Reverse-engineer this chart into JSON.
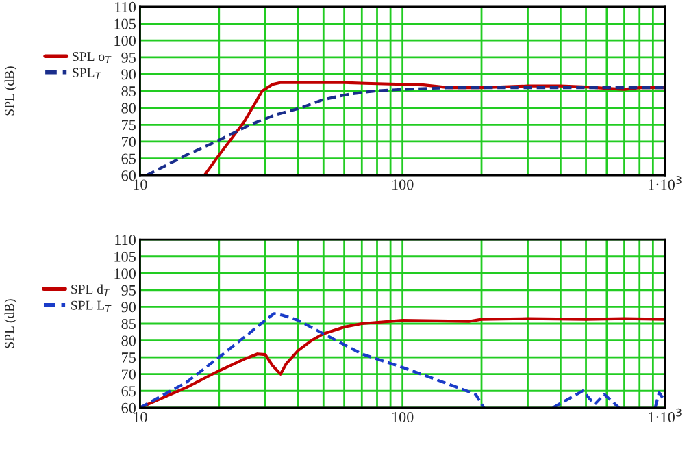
{
  "chart_data": [
    {
      "type": "line",
      "ylabel": "SPL (dB)",
      "xlim": [
        10,
        1000
      ],
      "ylim": [
        60,
        110
      ],
      "log": "x",
      "grid": true,
      "legend": "left",
      "xticks": [
        10,
        {
          "value": 20,
          "label": null
        },
        {
          "value": 30,
          "label": null
        },
        {
          "value": 40,
          "label": null
        },
        {
          "value": 50,
          "label": null
        },
        {
          "value": 60,
          "label": null
        },
        {
          "value": 70,
          "label": null
        },
        {
          "value": 80,
          "label": null
        },
        {
          "value": 90,
          "label": null
        },
        100,
        {
          "value": 200,
          "label": null
        },
        {
          "value": 300,
          "label": null
        },
        {
          "value": 400,
          "label": null
        },
        {
          "value": 500,
          "label": null
        },
        {
          "value": 600,
          "label": null
        },
        {
          "value": 700,
          "label": null
        },
        {
          "value": 800,
          "label": null
        },
        {
          "value": 900,
          "label": null
        },
        {
          "value": 1000,
          "label": "1·10$^{3}$"
        }
      ],
      "yticks": [
        60,
        65,
        70,
        75,
        80,
        85,
        90,
        95,
        100,
        105,
        110
      ],
      "series": [
        {
          "name": "SPL o$_{T}$",
          "color": "#c00000",
          "line_style": "solid",
          "x": [
            17.6,
            20,
            25,
            29.2,
            32,
            34.2,
            40,
            60,
            72,
            100,
            120,
            150,
            200,
            300,
            400,
            500,
            600,
            700,
            800,
            1000
          ],
          "values": [
            60,
            66,
            76,
            85,
            87,
            87.5,
            87.5,
            87.5,
            87.3,
            87,
            86.8,
            86,
            86,
            86.5,
            86.5,
            86.2,
            85.8,
            85.5,
            86,
            86
          ]
        },
        {
          "name": "SPL$_{T}$",
          "color": "#1a2e8c",
          "line_style": "dashed",
          "x": [
            10.6,
            15,
            19.5,
            26.3,
            33,
            41,
            50,
            62,
            78,
            100,
            150,
            200,
            300,
            500,
            700,
            1000
          ],
          "values": [
            60,
            66,
            70,
            75,
            78,
            80,
            82.5,
            84,
            85,
            85.5,
            86,
            86,
            86,
            86,
            86,
            86
          ]
        }
      ]
    },
    {
      "type": "line",
      "ylabel": "SPL (dB)",
      "xlim": [
        10,
        1000
      ],
      "ylim": [
        60,
        110
      ],
      "log": "x",
      "grid": true,
      "legend": "left",
      "xticks": [
        10,
        {
          "value": 20,
          "label": null
        },
        {
          "value": 30,
          "label": null
        },
        {
          "value": 40,
          "label": null
        },
        {
          "value": 50,
          "label": null
        },
        {
          "value": 60,
          "label": null
        },
        {
          "value": 70,
          "label": null
        },
        {
          "value": 80,
          "label": null
        },
        {
          "value": 90,
          "label": null
        },
        100,
        {
          "value": 200,
          "label": null
        },
        {
          "value": 300,
          "label": null
        },
        {
          "value": 400,
          "label": null
        },
        {
          "value": 500,
          "label": null
        },
        {
          "value": 600,
          "label": null
        },
        {
          "value": 700,
          "label": null
        },
        {
          "value": 800,
          "label": null
        },
        {
          "value": 900,
          "label": null
        },
        {
          "value": 1000,
          "label": "1·10$^{3}$"
        }
      ],
      "yticks": [
        60,
        65,
        70,
        75,
        80,
        85,
        90,
        95,
        100,
        105,
        110
      ],
      "series": [
        {
          "name": "SPL d$_{T}$",
          "color": "#c00000",
          "line_style": "solid",
          "x": [
            10,
            15,
            20,
            25,
            28,
            30,
            32,
            34.3,
            36,
            40,
            45,
            50,
            60,
            70,
            100,
            150,
            180,
            200,
            300,
            500,
            700,
            1000
          ],
          "values": [
            60,
            66,
            71,
            74.5,
            76,
            75.8,
            72.5,
            70,
            73,
            77,
            80,
            82,
            84,
            85,
            86,
            85.8,
            85.7,
            86.3,
            86.5,
            86.3,
            86.5,
            86.3
          ]
        },
        {
          "name": "SPL L$_{T}$",
          "color": "#1a3cc8",
          "line_style": "dashed",
          "x": [
            10,
            15,
            20,
            25,
            30,
            32.4,
            35,
            40,
            50,
            70,
            100,
            150,
            190,
            204,
            290,
            374,
            486,
            540,
            587,
            668,
            800,
            918,
            950,
            1000
          ],
          "values": [
            60,
            67.5,
            75,
            81,
            86,
            88,
            87.5,
            86,
            82,
            76,
            72,
            67,
            64,
            60,
            null,
            60,
            65,
            61,
            64,
            60,
            null,
            60,
            64.5,
            62
          ]
        }
      ]
    }
  ]
}
